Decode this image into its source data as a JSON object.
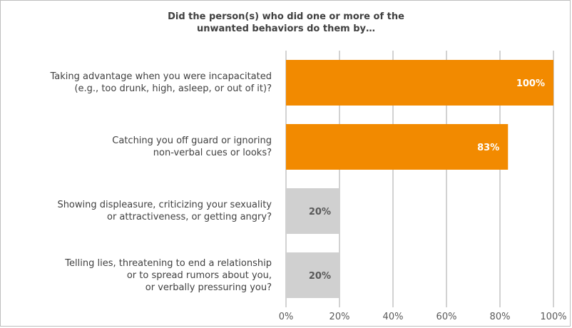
{
  "chart_data": {
    "type": "bar",
    "orientation": "horizontal",
    "title": "Did the person(s) who did one or more of the\nunwanted behaviors do them by…",
    "categories": [
      "Taking advantage when you were incapacitated\n(e.g., too drunk, high, asleep, or out of it)?",
      "Catching you off guard or ignoring\nnon-verbal cues or looks?",
      "Showing displeasure, criticizing your sexuality\nor attractiveness, or getting angry?",
      "Telling lies, threatening to end a relationship\nor to spread rumors about you,\nor verbally pressuring you?"
    ],
    "values": [
      100,
      83,
      20,
      20
    ],
    "value_labels": [
      "100%",
      "83%",
      "20%",
      "20%"
    ],
    "bar_colors": [
      "#f28a00",
      "#f28a00",
      "#d0d0d0",
      "#d0d0d0"
    ],
    "label_colors": [
      "#ffffff",
      "#ffffff",
      "#595959",
      "#595959"
    ],
    "xlim": [
      0,
      100
    ],
    "xticks": [
      "0%",
      "20%",
      "40%",
      "60%",
      "80%",
      "100%"
    ],
    "grid": true,
    "gridline_color": "#a6a6a6"
  }
}
